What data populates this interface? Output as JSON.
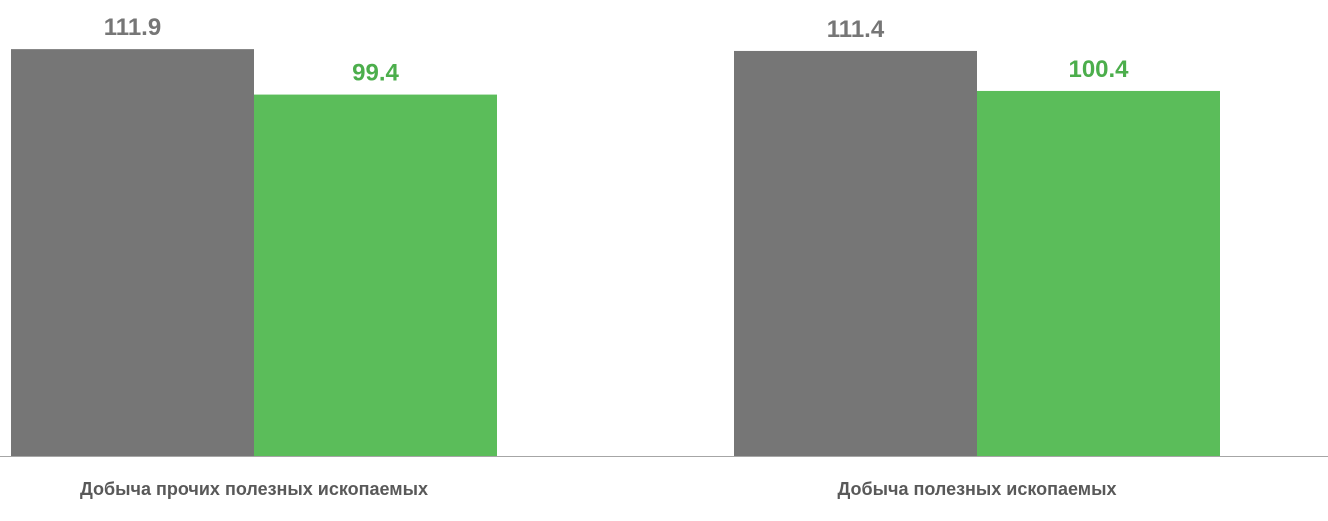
{
  "chart_data": {
    "type": "bar",
    "categories": [
      "Добыча прочих полезных ископаемых",
      "Добыча полезных ископаемых"
    ],
    "series": [
      {
        "values": [
          111.9,
          111.4
        ],
        "color": "#767676",
        "label_color": "#767676"
      },
      {
        "values": [
          99.4,
          100.4
        ],
        "color": "#5bbd5a",
        "label_color": "#4cae4c"
      }
    ],
    "axis_color": "#a6a6a6",
    "grid": false,
    "legend": "none",
    "data_labels": true
  }
}
